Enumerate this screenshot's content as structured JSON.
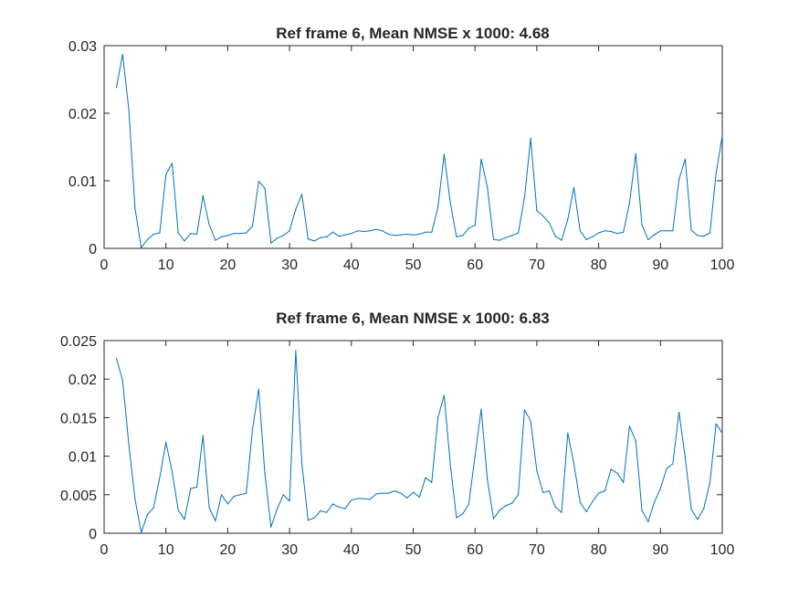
{
  "chart_data": [
    {
      "type": "line",
      "title": "Ref frame 6, Mean NMSE x 1000: 4.68",
      "xlabel": "",
      "ylabel": "",
      "xlim": [
        0,
        100
      ],
      "ylim": [
        0,
        0.03
      ],
      "grid": false,
      "xticks": [
        0,
        10,
        20,
        30,
        40,
        50,
        60,
        70,
        80,
        90,
        100
      ],
      "xtick_labels": [
        "0",
        "10",
        "20",
        "30",
        "40",
        "50",
        "60",
        "70",
        "80",
        "90",
        "100"
      ],
      "yticks": [
        0,
        0.01,
        0.02,
        0.03
      ],
      "ytick_labels": [
        "0",
        "0.01",
        "0.02",
        "0.03"
      ],
      "series": [
        {
          "color": "#0072BD",
          "x": [
            2,
            3,
            4,
            5,
            6,
            7,
            8,
            9,
            10,
            11,
            12,
            13,
            14,
            15,
            16,
            17,
            18,
            19,
            20,
            21,
            22,
            23,
            24,
            25,
            26,
            27,
            28,
            29,
            30,
            31,
            32,
            33,
            34,
            35,
            36,
            37,
            38,
            39,
            40,
            41,
            42,
            43,
            44,
            45,
            46,
            47,
            48,
            49,
            50,
            51,
            52,
            53,
            54,
            55,
            56,
            57,
            58,
            59,
            60,
            61,
            62,
            63,
            64,
            65,
            66,
            67,
            68,
            69,
            70,
            71,
            72,
            73,
            74,
            75,
            76,
            77,
            78,
            79,
            80,
            81,
            82,
            83,
            84,
            85,
            86,
            87,
            88,
            89,
            90,
            91,
            92,
            93,
            94,
            95,
            96,
            97,
            98,
            99,
            100
          ],
          "y": [
            0.0238,
            0.0287,
            0.0205,
            0.006,
            0.0001,
            0.0013,
            0.0021,
            0.0023,
            0.0109,
            0.0126,
            0.0023,
            0.0011,
            0.0022,
            0.0021,
            0.0078,
            0.0035,
            0.0012,
            0.0017,
            0.0019,
            0.0022,
            0.0022,
            0.0023,
            0.0033,
            0.0099,
            0.0089,
            0.0008,
            0.0015,
            0.0019,
            0.0026,
            0.0058,
            0.008,
            0.0014,
            0.0011,
            0.0016,
            0.0017,
            0.0024,
            0.0018,
            0.002,
            0.0022,
            0.0026,
            0.0025,
            0.0026,
            0.0028,
            0.0026,
            0.0021,
            0.0019,
            0.002,
            0.0021,
            0.002,
            0.0021,
            0.0024,
            0.0024,
            0.0061,
            0.0139,
            0.0068,
            0.0017,
            0.0019,
            0.003,
            0.0034,
            0.0132,
            0.0091,
            0.0013,
            0.0012,
            0.0016,
            0.0019,
            0.0023,
            0.0075,
            0.0163,
            0.0056,
            0.0048,
            0.0038,
            0.0018,
            0.0012,
            0.0043,
            0.009,
            0.0026,
            0.0013,
            0.0017,
            0.0023,
            0.0026,
            0.0025,
            0.0022,
            0.0024,
            0.0067,
            0.014,
            0.0035,
            0.0013,
            0.002,
            0.0026,
            0.0026,
            0.0026,
            0.0102,
            0.0132,
            0.0027,
            0.0019,
            0.0018,
            0.0023,
            0.0111,
            0.0167
          ]
        }
      ]
    },
    {
      "type": "line",
      "title": "Ref frame 6, Mean NMSE x 1000: 6.83",
      "xlabel": "",
      "ylabel": "",
      "xlim": [
        0,
        100
      ],
      "ylim": [
        0,
        0.025
      ],
      "grid": false,
      "xticks": [
        0,
        10,
        20,
        30,
        40,
        50,
        60,
        70,
        80,
        90,
        100
      ],
      "xtick_labels": [
        "0",
        "10",
        "20",
        "30",
        "40",
        "50",
        "60",
        "70",
        "80",
        "90",
        "100"
      ],
      "yticks": [
        0,
        0.005,
        0.01,
        0.015,
        0.02,
        0.025
      ],
      "ytick_labels": [
        "0",
        "0.005",
        "0.01",
        "0.015",
        "0.02",
        "0.025"
      ],
      "series": [
        {
          "color": "#0072BD",
          "x": [
            2,
            3,
            4,
            5,
            6,
            7,
            8,
            9,
            10,
            11,
            12,
            13,
            14,
            15,
            16,
            17,
            18,
            19,
            20,
            21,
            22,
            23,
            24,
            25,
            26,
            27,
            28,
            29,
            30,
            31,
            32,
            33,
            34,
            35,
            36,
            37,
            38,
            39,
            40,
            41,
            42,
            43,
            44,
            45,
            46,
            47,
            48,
            49,
            50,
            51,
            52,
            53,
            54,
            55,
            56,
            57,
            58,
            59,
            60,
            61,
            62,
            63,
            64,
            65,
            66,
            67,
            68,
            69,
            70,
            71,
            72,
            73,
            74,
            75,
            76,
            77,
            78,
            79,
            80,
            81,
            82,
            83,
            84,
            85,
            86,
            87,
            88,
            89,
            90,
            91,
            92,
            93,
            94,
            95,
            96,
            97,
            98,
            99,
            100
          ],
          "y": [
            0.0227,
            0.0198,
            0.0115,
            0.0045,
            0.0001,
            0.0024,
            0.0033,
            0.0072,
            0.0118,
            0.008,
            0.003,
            0.0018,
            0.0058,
            0.006,
            0.0127,
            0.0033,
            0.0016,
            0.005,
            0.0038,
            0.0048,
            0.005,
            0.0052,
            0.0135,
            0.0187,
            0.0078,
            0.0008,
            0.0032,
            0.005,
            0.0042,
            0.0237,
            0.009,
            0.0017,
            0.002,
            0.0029,
            0.0027,
            0.0038,
            0.0034,
            0.0032,
            0.0043,
            0.0045,
            0.0045,
            0.0044,
            0.0051,
            0.0052,
            0.0052,
            0.0055,
            0.0052,
            0.0046,
            0.0053,
            0.0047,
            0.0072,
            0.0066,
            0.015,
            0.0179,
            0.009,
            0.002,
            0.0025,
            0.0038,
            0.01,
            0.0161,
            0.007,
            0.0019,
            0.003,
            0.0036,
            0.0039,
            0.005,
            0.016,
            0.0146,
            0.0081,
            0.0053,
            0.0055,
            0.0034,
            0.0027,
            0.013,
            0.009,
            0.004,
            0.0028,
            0.0041,
            0.0052,
            0.0055,
            0.0083,
            0.0078,
            0.0066,
            0.0139,
            0.012,
            0.003,
            0.0015,
            0.004,
            0.0058,
            0.0084,
            0.009,
            0.0157,
            0.0098,
            0.0031,
            0.0018,
            0.0032,
            0.0066,
            0.0142,
            0.013
          ]
        }
      ]
    }
  ]
}
